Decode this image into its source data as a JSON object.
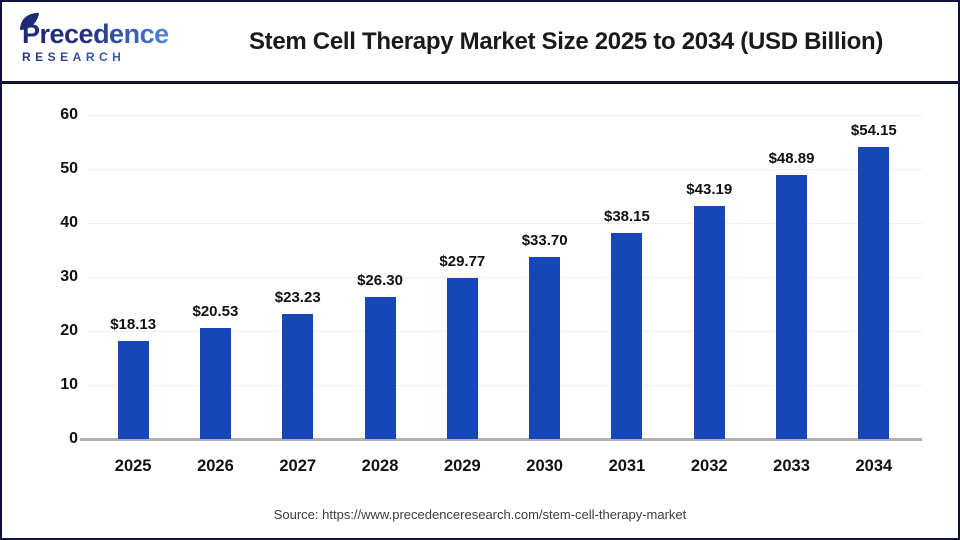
{
  "header": {
    "logo": {
      "line1": "Precedence",
      "line2": "RESEARCH"
    },
    "title": "Stem Cell Therapy Market Size 2025 to 2034 (USD Billion)"
  },
  "chart_data": {
    "type": "bar",
    "title": "Stem Cell Therapy Market Size 2025 to 2034 (USD Billion)",
    "categories": [
      "2025",
      "2026",
      "2027",
      "2028",
      "2029",
      "2030",
      "2031",
      "2032",
      "2033",
      "2034"
    ],
    "values": [
      18.13,
      20.53,
      23.23,
      26.3,
      29.77,
      33.7,
      38.15,
      43.19,
      48.89,
      54.15
    ],
    "bar_labels": [
      "$18.13",
      "$20.53",
      "$23.23",
      "$26.30",
      "$29.77",
      "$33.70",
      "$38.15",
      "$43.19",
      "$48.89",
      "$54.15"
    ],
    "xlabel": "",
    "ylabel": "",
    "ylim": [
      0,
      60
    ],
    "yticks": [
      0,
      10,
      20,
      30,
      40,
      50,
      60
    ],
    "grid": true,
    "legend": false,
    "bar_color": "#1747b6"
  },
  "footer": {
    "source": "Source: https://www.precedenceresearch.com/stem-cell-therapy-market"
  },
  "colors": {
    "bar": "#1747b6",
    "frame": "#12123f",
    "grid": "#efefef",
    "baseline": "#b0b0b0",
    "logo_dark": "#1e2a78",
    "logo_light": "#4b86dd"
  }
}
